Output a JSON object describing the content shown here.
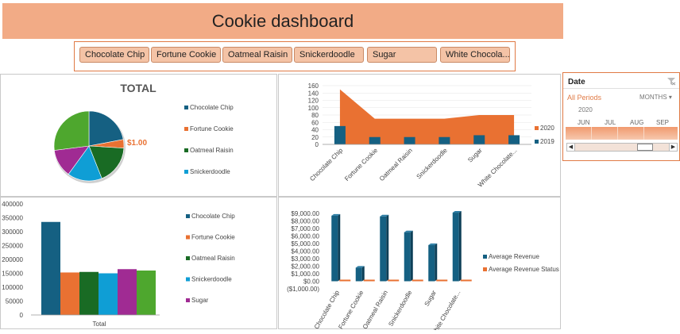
{
  "header": {
    "title": "Cookie dashboard"
  },
  "slicer": {
    "items": [
      "Chocolate Chip",
      "Fortune Cookie",
      "Oatmeal Raisin",
      "Snickerdoodle",
      "Sugar",
      "White Chocola..."
    ]
  },
  "colors": {
    "banner": "#f2ab86",
    "orange": "#e97132",
    "dark_blue": "#156082",
    "green": "#196b24",
    "cyan": "#0f9ed5",
    "purple": "#a02b93",
    "lime": "#4ea72e"
  },
  "charts": {
    "pie": {
      "title": "TOTAL",
      "slice_label": "$1.00",
      "legend": [
        "Chocolate Chip",
        "Fortune Cookie",
        "Oatmeal Raisin",
        "Snickerdoodle"
      ]
    },
    "area": {
      "legend": [
        "2020",
        "2019"
      ],
      "categories": [
        "Chocolate Chip",
        "Fortune Cookie",
        "Oatmeal Raisin",
        "Snickerdoodle",
        "Sugar",
        "White Chocolate..."
      ],
      "ticks": [
        "0",
        "20",
        "40",
        "60",
        "80",
        "100",
        "120",
        "140",
        "160"
      ]
    },
    "bar": {
      "category": "Total",
      "legend": [
        "Chocolate Chip",
        "Fortune Cookie",
        "Oatmeal Raisin",
        "Snickerdoodle",
        "Sugar"
      ],
      "ticks": [
        "0",
        "50000",
        "100000",
        "150000",
        "200000",
        "250000",
        "300000",
        "350000",
        "400000"
      ]
    },
    "revenue": {
      "legend": [
        "Average Revenue",
        "Average Revenue Status"
      ],
      "categories": [
        "Chocolate Chip",
        "Fortune Cookie",
        "Oatmeal Raisin",
        "Snickerdoodle",
        "Sugar",
        "White Chocolate..."
      ],
      "ticks": [
        "($1,000.00)",
        "$0.00",
        "$1,000.00",
        "$2,000.00",
        "$3,000.00",
        "$4,000.00",
        "$5,000.00",
        "$6,000.00",
        "$7,000.00",
        "$8,000.00",
        "$9,000.00"
      ]
    }
  },
  "chart_data": [
    {
      "type": "pie",
      "title": "TOTAL",
      "categories": [
        "Chocolate Chip",
        "Fortune Cookie",
        "Oatmeal Raisin",
        "Snickerdoodle",
        "Purple slice",
        "Green slice"
      ],
      "values": [
        22,
        4,
        18,
        16,
        13,
        27
      ],
      "data_labels": [
        "",
        "$1.00",
        "",
        "",
        "",
        ""
      ]
    },
    {
      "type": "bar",
      "categories": [
        "Chocolate Chip",
        "Fortune Cookie",
        "Oatmeal Raisin",
        "Snickerdoodle",
        "Sugar",
        "White Chocolate..."
      ],
      "series": [
        {
          "name": "2020",
          "chart_type": "area",
          "values": [
            150,
            70,
            70,
            70,
            80,
            80
          ]
        },
        {
          "name": "2019",
          "values": [
            50,
            20,
            20,
            20,
            25,
            25
          ]
        }
      ],
      "ylim": [
        0,
        160
      ]
    },
    {
      "type": "bar",
      "categories": [
        "Total"
      ],
      "series": [
        {
          "name": "Chocolate Chip",
          "values": [
            335000
          ]
        },
        {
          "name": "Fortune Cookie",
          "values": [
            153000
          ]
        },
        {
          "name": "Oatmeal Raisin",
          "values": [
            155000
          ]
        },
        {
          "name": "Snickerdoodle",
          "values": [
            150000
          ]
        },
        {
          "name": "Sugar",
          "values": [
            165000
          ]
        },
        {
          "values": [
            160000
          ]
        }
      ],
      "ylim": [
        0,
        400000
      ],
      "xlabel": "Total"
    },
    {
      "type": "bar",
      "categories": [
        "Chocolate Chip",
        "Fortune Cookie",
        "Oatmeal Raisin",
        "Snickerdoodle",
        "Sugar",
        "White Chocolate..."
      ],
      "series": [
        {
          "name": "Average Revenue",
          "values": [
            8700,
            1800,
            8600,
            6500,
            4800,
            9100
          ]
        },
        {
          "name": "Average Revenue Status",
          "values": [
            0,
            0,
            0,
            0,
            0,
            0
          ]
        }
      ],
      "ylim": [
        -1000,
        9000
      ]
    }
  ],
  "timeline": {
    "title": "Date",
    "all_periods": "All Periods",
    "level": "MONTHS",
    "year": "2020",
    "months": [
      "JUN",
      "JUL",
      "AUG",
      "SEP"
    ]
  }
}
